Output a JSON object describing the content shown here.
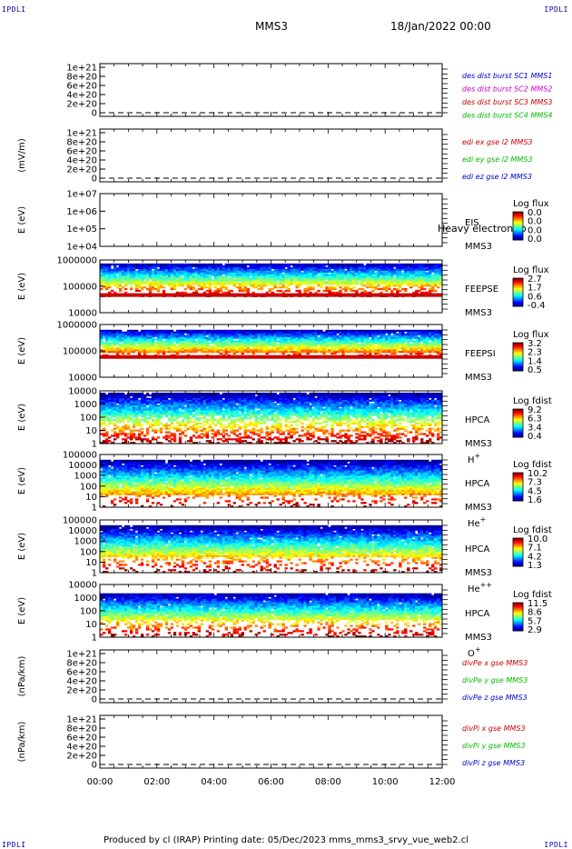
{
  "corners": {
    "left": "IPDLI",
    "right": "IPDLI"
  },
  "header": {
    "spacecraft": "MMS3",
    "date": "18/Jan/2022 00:00"
  },
  "footer": {
    "text": "Produced by cl (IRAP)    Printing date: 05/Dec/2023    mms_mms3_srvy_vue_web2.cl"
  },
  "chart_data": {
    "type": "heatmap",
    "x_ticks": [
      "00:00",
      "02:00",
      "04:00",
      "06:00",
      "08:00",
      "10:00",
      "12:00"
    ],
    "panels": [
      {
        "kind": "line",
        "ylabel": "",
        "yticks": [
          "0",
          "2e+20",
          "4e+20",
          "6e+20",
          "8e+20",
          "1e+21"
        ],
        "legend": [
          {
            "text": "des dist burst SC1 MMS1",
            "color": "#0000cc"
          },
          {
            "text": "des dist burst SC2 MMS2",
            "color": "#cc00cc"
          },
          {
            "text": "des dist burst SC3 MMS3",
            "color": "#cc0000"
          },
          {
            "text": "des dist burst SC4 MMS4",
            "color": "#00bb00"
          }
        ]
      },
      {
        "kind": "line",
        "ylabel": "(mV/m)",
        "yticks": [
          "0",
          "2e+20",
          "4e+20",
          "6e+20",
          "8e+20",
          "1e+21"
        ],
        "legend": [
          {
            "text": "edi ex gse l2 MMS3",
            "color": "#cc0000"
          },
          {
            "text": "edi ey gse l2 MMS3",
            "color": "#00bb00"
          },
          {
            "text": "edi ez gse l2 MMS3",
            "color": "#0000cc"
          }
        ]
      },
      {
        "kind": "spec",
        "ylabel": "E (eV)",
        "yticks": [
          "1e+04",
          "1e+05",
          "1e+06",
          "1e+07"
        ],
        "labels": [
          "EIS",
          "MMS3"
        ],
        "overlay": "Heavy electron to",
        "cbar_title": "Log flux",
        "cbar_ticks": [
          "0.0",
          "0.0",
          "0.0",
          "0.0"
        ],
        "data": {
          "low": 0,
          "high": 0,
          "fill_frac": 0,
          "density": 0,
          "belt": false
        }
      },
      {
        "kind": "spec",
        "ylabel": "E (eV)",
        "yticks": [
          "10000",
          "100000",
          "1000000"
        ],
        "labels": [
          "FEEPSE",
          "MMS3"
        ],
        "cbar_title": "Log flux",
        "cbar_ticks": [
          "2.7",
          "1.7",
          "0.6",
          "-0.4"
        ],
        "data": {
          "low": 0.3,
          "high": 0.95,
          "fill_frac": 0.35,
          "density": 0.95,
          "belt": true
        }
      },
      {
        "kind": "spec",
        "ylabel": "E (eV)",
        "yticks": [
          "10000",
          "100000",
          "1000000"
        ],
        "labels": [
          "FEEPSI",
          "MMS3"
        ],
        "cbar_title": "Log flux",
        "cbar_ticks": [
          "3.2",
          "2.3",
          "1.4",
          "0.5"
        ],
        "data": {
          "low": 0.35,
          "high": 0.92,
          "fill_frac": 0.2,
          "density": 0.45,
          "belt": true
        }
      },
      {
        "kind": "spec",
        "ylabel": "E (eV)",
        "yticks": [
          "1",
          "10",
          "100",
          "1000",
          "10000"
        ],
        "labels": [
          "HPCA",
          "MMS3"
        ],
        "species": "H",
        "species_sup": "+",
        "cbar_title": "Log fdist",
        "cbar_ticks": [
          "9.2",
          "6.3",
          "3.4",
          "0.4"
        ],
        "data": {
          "low": 0.0,
          "high": 0.97,
          "fill_frac": 0.55,
          "density": 0.9,
          "belt": false
        }
      },
      {
        "kind": "spec",
        "ylabel": "E (eV)",
        "yticks": [
          "1",
          "10",
          "100",
          "1000",
          "10000",
          "100000"
        ],
        "labels": [
          "HPCA",
          "MMS3"
        ],
        "species": "He",
        "species_sup": "+",
        "cbar_title": "Log fdist",
        "cbar_ticks": [
          "10.2",
          "7.3",
          "4.5",
          "1.6"
        ],
        "data": {
          "low": 0.0,
          "high": 0.9,
          "fill_frac": 0.25,
          "density": 0.3,
          "belt": false
        }
      },
      {
        "kind": "spec",
        "ylabel": "E (eV)",
        "yticks": [
          "1",
          "10",
          "100",
          "1000",
          "10000",
          "100000"
        ],
        "labels": [
          "HPCA",
          "MMS3"
        ],
        "species": "He",
        "species_sup": "++",
        "cbar_title": "Log fdist",
        "cbar_ticks": [
          "10.0",
          "7.1",
          "4.2",
          "1.3"
        ],
        "data": {
          "low": 0.0,
          "high": 0.9,
          "fill_frac": 0.35,
          "density": 0.4,
          "belt": false
        }
      },
      {
        "kind": "spec",
        "ylabel": "E (eV)",
        "yticks": [
          "1",
          "10",
          "100",
          "1000",
          "10000"
        ],
        "labels": [
          "HPCA",
          "MMS3"
        ],
        "species": "O",
        "species_sup": "+",
        "cbar_title": "Log fdist",
        "cbar_ticks": [
          "11.5",
          "8.6",
          "5.7",
          "2.9"
        ],
        "data": {
          "low": 0.0,
          "high": 0.85,
          "fill_frac": 0.4,
          "density": 0.5,
          "belt": false
        }
      },
      {
        "kind": "line",
        "ylabel": "(nPa/km)",
        "yticks": [
          "0",
          "2e+20",
          "4e+20",
          "6e+20",
          "8e+20",
          "1e+21"
        ],
        "legend": [
          {
            "text": "divPe x gse MMS3",
            "color": "#cc0000"
          },
          {
            "text": "divPe y gse MMS3",
            "color": "#00bb00"
          },
          {
            "text": "divPe z gse MMS3",
            "color": "#0000cc"
          }
        ]
      },
      {
        "kind": "line",
        "ylabel": "(nPa/km)",
        "yticks": [
          "0",
          "2e+20",
          "4e+20",
          "6e+20",
          "8e+20",
          "1e+21"
        ],
        "legend": [
          {
            "text": "divPi x gse MMS3",
            "color": "#cc0000"
          },
          {
            "text": "divPi y gse MMS3",
            "color": "#00bb00"
          },
          {
            "text": "divPi z gse MMS3",
            "color": "#0000cc"
          }
        ]
      }
    ]
  }
}
